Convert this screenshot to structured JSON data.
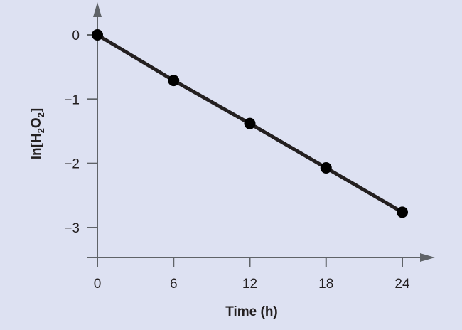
{
  "chart_data": {
    "type": "line",
    "title": "",
    "xlabel": "Time (h)",
    "ylabel": "ln[H2O2]",
    "ylabel_parts": {
      "pre": "ln[H",
      "sub1": "2",
      "mid": "O",
      "sub2": "2",
      "post": "]"
    },
    "x": [
      0,
      6,
      12,
      18,
      24
    ],
    "series": [
      {
        "name": "ln[H2O2]",
        "values": [
          0,
          -0.71,
          -1.38,
          -2.07,
          -2.76
        ],
        "color": "#231f20",
        "markers": true
      }
    ],
    "xlim": [
      0,
      24
    ],
    "ylim": [
      -3.45,
      0.45
    ],
    "x_ticks": [
      "0",
      "6",
      "12",
      "18",
      "24"
    ],
    "y_ticks": [
      "0",
      "−1",
      "−2",
      "−3"
    ],
    "grid": false,
    "legend": null
  },
  "colors": {
    "background": "#dde1f2",
    "axis": "#5f6368",
    "line": "#231f20",
    "marker": "#000000"
  }
}
